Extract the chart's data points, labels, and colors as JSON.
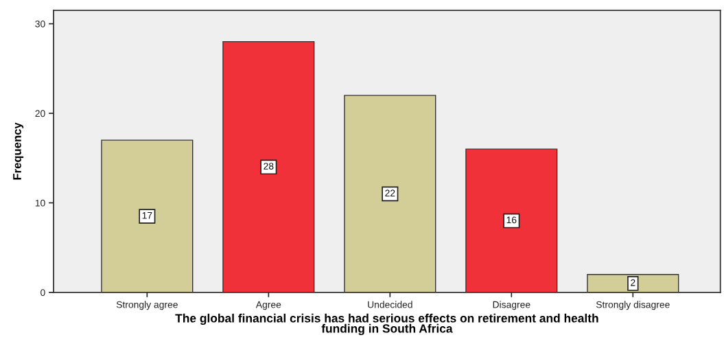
{
  "chart_data": {
    "type": "bar",
    "xlabel": "The global financial crisis has had serious effects on retirement and health\nfunding in South Africa",
    "ylabel": "Frequency",
    "categories": [
      "Strongly agree",
      "Agree",
      "Undecided",
      "Disagree",
      "Strongly disagree"
    ],
    "values": [
      17,
      28,
      22,
      16,
      2
    ],
    "colors": [
      "#d3ce97",
      "#f0313a",
      "#d3ce97",
      "#f0313a",
      "#d3ce97"
    ],
    "ylim": [
      0,
      31.5
    ],
    "yticks": [
      0,
      10,
      20,
      30
    ],
    "data_labels": true,
    "grid": false,
    "legend": false
  }
}
